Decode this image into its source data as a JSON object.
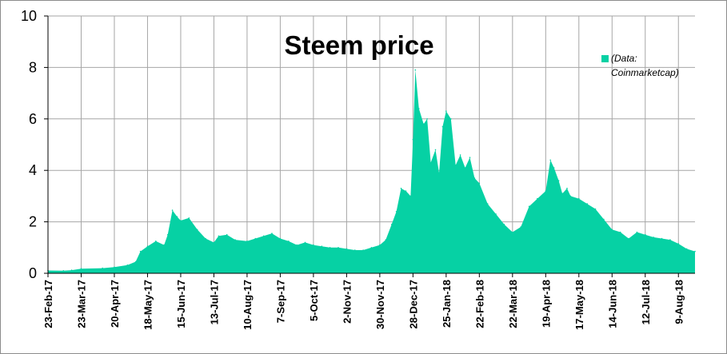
{
  "chart_data": {
    "type": "area",
    "title": "Steem price",
    "xlabel": "",
    "ylabel": "",
    "ylim": [
      0,
      10
    ],
    "yticks": [
      0,
      2,
      4,
      6,
      8,
      10
    ],
    "grid": true,
    "legend_position": "top-right",
    "color": "#06d1a4",
    "x_tick_labels": [
      "23-Feb-17",
      "23-Mar-17",
      "20-Apr-17",
      "18-May-17",
      "15-Jun-17",
      "13-Jul-17",
      "10-Aug-17",
      "7-Sep-17",
      "5-Oct-17",
      "2-Nov-17",
      "30-Nov-17",
      "28-Dec-17",
      "25-Jan-18",
      "22-Feb-18",
      "22-Mar-18",
      "19-Apr-18",
      "17-May-18",
      "14-Jun-18",
      "12-Jul-18",
      "9-Aug-18"
    ],
    "series": [
      {
        "name": "(Data: Coinmarketcap)",
        "x": [
          "2017-02-23",
          "2017-03-08",
          "2017-03-15",
          "2017-03-23",
          "2017-04-10",
          "2017-04-20",
          "2017-05-01",
          "2017-05-08",
          "2017-05-12",
          "2017-05-18",
          "2017-05-25",
          "2017-06-01",
          "2017-06-04",
          "2017-06-08",
          "2017-06-12",
          "2017-06-15",
          "2017-06-22",
          "2017-06-29",
          "2017-07-06",
          "2017-07-13",
          "2017-07-17",
          "2017-07-24",
          "2017-07-31",
          "2017-08-10",
          "2017-08-17",
          "2017-08-24",
          "2017-08-31",
          "2017-09-07",
          "2017-09-14",
          "2017-09-21",
          "2017-09-28",
          "2017-10-05",
          "2017-10-12",
          "2017-10-19",
          "2017-10-26",
          "2017-11-02",
          "2017-11-09",
          "2017-11-16",
          "2017-11-23",
          "2017-11-30",
          "2017-12-05",
          "2017-12-10",
          "2017-12-14",
          "2017-12-18",
          "2017-12-22",
          "2017-12-26",
          "2017-12-28",
          "2017-12-30",
          "2018-01-02",
          "2018-01-06",
          "2018-01-09",
          "2018-01-12",
          "2018-01-16",
          "2018-01-19",
          "2018-01-22",
          "2018-01-25",
          "2018-01-29",
          "2018-02-02",
          "2018-02-06",
          "2018-02-10",
          "2018-02-14",
          "2018-02-18",
          "2018-02-22",
          "2018-03-01",
          "2018-03-08",
          "2018-03-15",
          "2018-03-22",
          "2018-03-29",
          "2018-04-05",
          "2018-04-12",
          "2018-04-19",
          "2018-04-23",
          "2018-04-26",
          "2018-04-30",
          "2018-05-03",
          "2018-05-07",
          "2018-05-10",
          "2018-05-17",
          "2018-05-24",
          "2018-05-31",
          "2018-06-07",
          "2018-06-14",
          "2018-06-21",
          "2018-06-28",
          "2018-07-05",
          "2018-07-12",
          "2018-07-19",
          "2018-07-26",
          "2018-08-02",
          "2018-08-09",
          "2018-08-16",
          "2018-08-23"
        ],
        "values": [
          0.11,
          0.1,
          0.12,
          0.18,
          0.2,
          0.24,
          0.32,
          0.45,
          0.85,
          1.05,
          1.25,
          1.1,
          1.5,
          2.45,
          2.2,
          2.05,
          2.15,
          1.7,
          1.35,
          1.2,
          1.45,
          1.5,
          1.3,
          1.25,
          1.35,
          1.45,
          1.55,
          1.35,
          1.25,
          1.1,
          1.2,
          1.1,
          1.05,
          1.0,
          1.0,
          0.95,
          0.9,
          0.9,
          1.0,
          1.1,
          1.3,
          1.9,
          2.4,
          3.3,
          3.2,
          3.0,
          5.2,
          7.9,
          6.4,
          5.8,
          6.0,
          4.3,
          4.8,
          3.9,
          5.7,
          6.3,
          6.0,
          4.2,
          4.6,
          4.1,
          4.5,
          3.7,
          3.5,
          2.7,
          2.3,
          1.9,
          1.6,
          1.8,
          2.6,
          2.9,
          3.2,
          4.4,
          4.1,
          3.6,
          3.1,
          3.3,
          3.0,
          2.9,
          2.7,
          2.5,
          2.1,
          1.7,
          1.6,
          1.35,
          1.6,
          1.5,
          1.4,
          1.35,
          1.3,
          1.15,
          0.95,
          0.85
        ]
      }
    ]
  }
}
